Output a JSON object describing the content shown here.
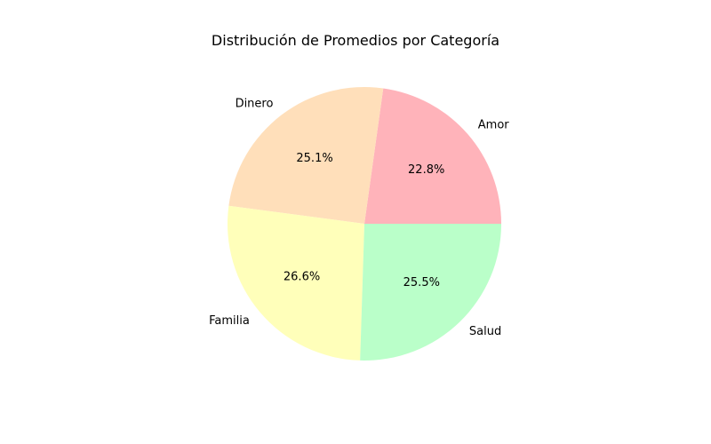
{
  "chart_data": {
    "type": "pie",
    "title": "Distribución de Promedios por Categoría",
    "categories": [
      "Amor",
      "Dinero",
      "Familia",
      "Salud"
    ],
    "values": [
      22.8,
      25.1,
      26.6,
      25.5
    ],
    "value_labels": [
      "22.8%",
      "25.1%",
      "26.6%",
      "25.5%"
    ],
    "colors": [
      "#ffb3ba",
      "#ffdfba",
      "#ffffba",
      "#baffc9"
    ],
    "start_angle_deg": 0,
    "direction": "counterclockwise",
    "legend": "none"
  }
}
